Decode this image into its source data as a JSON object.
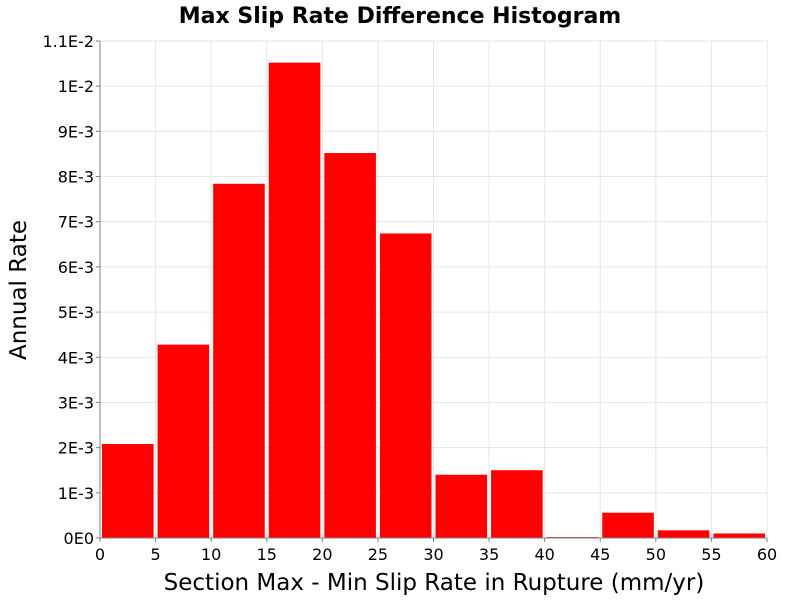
{
  "chart_data": {
    "type": "bar",
    "title": "Max Slip Rate Difference Histogram",
    "xlabel": "Section Max - Min Slip Rate in Rupture (mm/yr)",
    "ylabel": "Annual Rate",
    "xlim": [
      0,
      60
    ],
    "ylim": [
      0,
      0.011
    ],
    "bin_width": 5,
    "bar_color": "#ff0000",
    "grid": true,
    "x_ticks": [
      {
        "value": 0,
        "label": "0"
      },
      {
        "value": 5,
        "label": "5"
      },
      {
        "value": 10,
        "label": "10"
      },
      {
        "value": 15,
        "label": "15"
      },
      {
        "value": 20,
        "label": "20"
      },
      {
        "value": 25,
        "label": "25"
      },
      {
        "value": 30,
        "label": "30"
      },
      {
        "value": 35,
        "label": "35"
      },
      {
        "value": 40,
        "label": "40"
      },
      {
        "value": 45,
        "label": "45"
      },
      {
        "value": 50,
        "label": "50"
      },
      {
        "value": 55,
        "label": "55"
      },
      {
        "value": 60,
        "label": "60"
      }
    ],
    "y_ticks": [
      {
        "value": 0,
        "label": "0E0"
      },
      {
        "value": 0.001,
        "label": "1E-3"
      },
      {
        "value": 0.002,
        "label": "2E-3"
      },
      {
        "value": 0.003,
        "label": "3E-3"
      },
      {
        "value": 0.004,
        "label": "4E-3"
      },
      {
        "value": 0.005,
        "label": "5E-3"
      },
      {
        "value": 0.006,
        "label": "6E-3"
      },
      {
        "value": 0.007,
        "label": "7E-3"
      },
      {
        "value": 0.008,
        "label": "8E-3"
      },
      {
        "value": 0.009,
        "label": "9E-3"
      },
      {
        "value": 0.01,
        "label": "1E-2"
      },
      {
        "value": 0.011,
        "label": "1.1E-2"
      }
    ],
    "bins": [
      {
        "x0": 0,
        "x1": 5,
        "value": 0.00208
      },
      {
        "x0": 5,
        "x1": 10,
        "value": 0.00428
      },
      {
        "x0": 10,
        "x1": 15,
        "value": 0.00784
      },
      {
        "x0": 15,
        "x1": 20,
        "value": 0.01052
      },
      {
        "x0": 20,
        "x1": 25,
        "value": 0.00852
      },
      {
        "x0": 25,
        "x1": 30,
        "value": 0.00674
      },
      {
        "x0": 30,
        "x1": 35,
        "value": 0.0014
      },
      {
        "x0": 35,
        "x1": 40,
        "value": 0.0015
      },
      {
        "x0": 40,
        "x1": 45,
        "value": 2e-05
      },
      {
        "x0": 45,
        "x1": 50,
        "value": 0.00056
      },
      {
        "x0": 50,
        "x1": 55,
        "value": 0.00017
      },
      {
        "x0": 55,
        "x1": 60,
        "value": 0.0001
      }
    ]
  }
}
